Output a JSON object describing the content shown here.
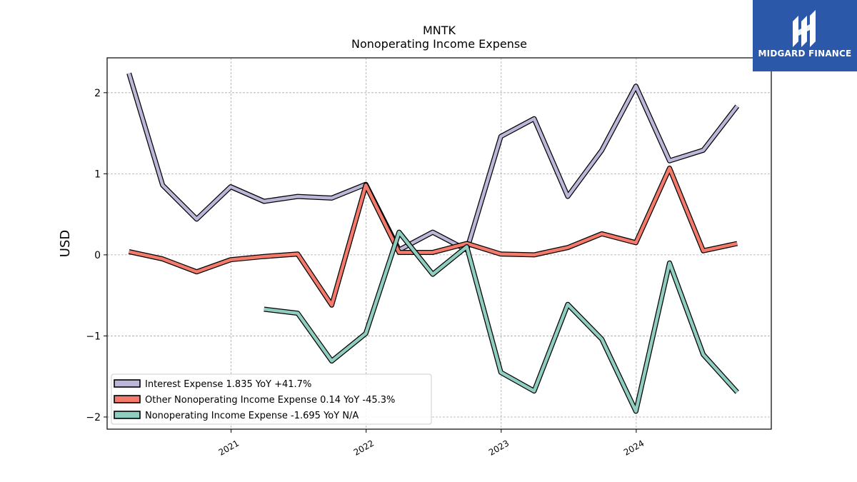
{
  "brand": {
    "name": "MIDGARD FINANCE",
    "bg_color": "#2b58a8"
  },
  "chart_data": {
    "type": "line",
    "title": "MNTK",
    "subtitle": "Nonoperating Income Expense",
    "xlabel": "",
    "ylabel": "USD",
    "xlim": [
      "2020-02-01",
      "2024-12-31"
    ],
    "ylim": [
      -2.15,
      2.43
    ],
    "yticks": [
      -2,
      -1,
      0,
      1,
      2
    ],
    "ytick_labels": [
      "−2",
      "−1",
      "0",
      "1",
      "2"
    ],
    "xticks": [
      "2021-01-01",
      "2022-01-01",
      "2023-01-01",
      "2024-01-01"
    ],
    "xtick_labels": [
      "2021",
      "2022",
      "2023",
      "2024"
    ],
    "grid": true,
    "legend_position": "lower-left",
    "series": [
      {
        "name": "Interest Expense  1.835 YoY +41.7%",
        "color": "#bcb6d8",
        "points": [
          [
            "2020-03-31",
            2.24
          ],
          [
            "2020-06-30",
            0.86
          ],
          [
            "2020-09-30",
            0.44
          ],
          [
            "2020-12-31",
            0.84
          ],
          [
            "2021-03-31",
            0.66
          ],
          [
            "2021-06-30",
            0.72
          ],
          [
            "2021-09-30",
            0.7
          ],
          [
            "2021-12-31",
            0.87
          ],
          [
            "2022-03-31",
            0.06
          ],
          [
            "2022-06-30",
            0.28
          ],
          [
            "2022-09-30",
            0.06
          ],
          [
            "2022-12-31",
            1.46
          ],
          [
            "2023-03-31",
            1.68
          ],
          [
            "2023-06-30",
            0.72
          ],
          [
            "2023-09-30",
            1.29
          ],
          [
            "2023-12-31",
            2.08
          ],
          [
            "2024-03-31",
            1.16
          ],
          [
            "2024-06-30",
            1.29
          ],
          [
            "2024-09-30",
            1.835
          ]
        ]
      },
      {
        "name": "Other Nonoperating Income Expense  0.14 YoY -45.3%",
        "color": "#f47a6c",
        "points": [
          [
            "2020-03-31",
            0.04
          ],
          [
            "2020-06-30",
            -0.05
          ],
          [
            "2020-09-30",
            -0.21
          ],
          [
            "2020-12-31",
            -0.06
          ],
          [
            "2021-03-31",
            -0.02
          ],
          [
            "2021-06-30",
            0.01
          ],
          [
            "2021-09-30",
            -0.62
          ],
          [
            "2021-12-31",
            0.86
          ],
          [
            "2022-03-31",
            0.03
          ],
          [
            "2022-06-30",
            0.03
          ],
          [
            "2022-09-30",
            0.14
          ],
          [
            "2022-12-31",
            0.01
          ],
          [
            "2023-03-31",
            0.0
          ],
          [
            "2023-06-30",
            0.09
          ],
          [
            "2023-09-30",
            0.26
          ],
          [
            "2023-12-31",
            0.15
          ],
          [
            "2024-03-31",
            1.07
          ],
          [
            "2024-06-30",
            0.05
          ],
          [
            "2024-09-30",
            0.14
          ]
        ]
      },
      {
        "name": "Nonoperating Income Expense  -1.695 YoY N/A",
        "color": "#8ecdc0",
        "points": [
          [
            "2021-03-31",
            -0.67
          ],
          [
            "2021-06-30",
            -0.72
          ],
          [
            "2021-09-30",
            -1.31
          ],
          [
            "2021-12-31",
            -0.97
          ],
          [
            "2022-03-31",
            0.28
          ],
          [
            "2022-06-30",
            -0.24
          ],
          [
            "2022-09-30",
            0.1
          ],
          [
            "2022-12-31",
            -1.45
          ],
          [
            "2023-03-31",
            -1.68
          ],
          [
            "2023-06-30",
            -0.61
          ],
          [
            "2023-09-30",
            -1.04
          ],
          [
            "2023-12-31",
            -1.93
          ],
          [
            "2024-03-31",
            -0.1
          ],
          [
            "2024-06-30",
            -1.23
          ],
          [
            "2024-09-30",
            -1.695
          ]
        ]
      }
    ]
  }
}
